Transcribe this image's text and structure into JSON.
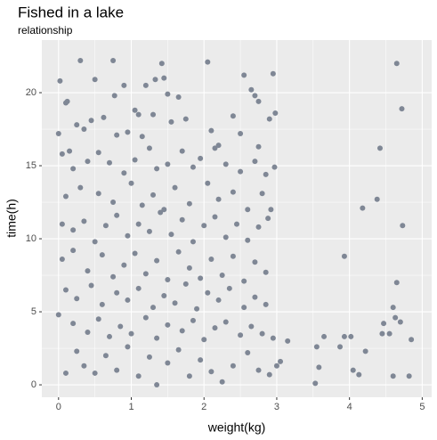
{
  "chart_data": {
    "type": "scatter",
    "title": "Fished in a lake",
    "subtitle": "relationship",
    "x_label": "weight(kg)",
    "y_label": "time(h)",
    "color": "#7f8795",
    "grid": true,
    "xlim": [
      -0.23,
      5.13
    ],
    "ylim": [
      -0.85,
      23.6
    ],
    "xticks": [
      0,
      1,
      2,
      3,
      4,
      5
    ],
    "yticks": [
      0,
      5,
      10,
      15,
      20
    ],
    "x": [
      3.15,
      3.05,
      3.0,
      3.53,
      3.55,
      3.65,
      3.58,
      3.87,
      3.93,
      3.93,
      4.02,
      4.05,
      4.13,
      4.18,
      4.22,
      4.38,
      4.42,
      4.45,
      4.47,
      4.55,
      4.6,
      4.6,
      4.63,
      4.65,
      4.65,
      4.72,
      4.73,
      4.82,
      4.85,
      4.7,
      0.02,
      0.1,
      0.12,
      0.3,
      0.5,
      0.75,
      0.77,
      0.9,
      1.05,
      1.1,
      1.2,
      1.33,
      1.42,
      1.45,
      1.5,
      1.65,
      2.05,
      2.55,
      2.65,
      2.75,
      2.95,
      2.7,
      2.9,
      2.98,
      0.25,
      0.35,
      0.45,
      0.62,
      0.8,
      0.95,
      1.15,
      1.3,
      1.55,
      1.75,
      2.1,
      2.2,
      2.4,
      2.5,
      2.75,
      0.0,
      0.05,
      0.15,
      0.2,
      0.4,
      0.55,
      0.7,
      0.9,
      1.05,
      1.25,
      1.35,
      1.5,
      1.7,
      1.85,
      1.95,
      2.15,
      2.3,
      2.5,
      2.7,
      2.85,
      2.97,
      0.1,
      0.3,
      0.55,
      0.75,
      1.0,
      1.15,
      1.3,
      1.45,
      1.6,
      1.8,
      2.05,
      2.2,
      2.4,
      2.6,
      2.8,
      2.92,
      0.05,
      0.2,
      0.35,
      0.5,
      0.65,
      0.8,
      0.95,
      1.1,
      1.25,
      1.4,
      1.55,
      1.7,
      1.85,
      2.0,
      2.15,
      2.3,
      2.45,
      2.6,
      2.75,
      2.88,
      0.05,
      0.2,
      0.4,
      0.6,
      0.75,
      0.9,
      1.05,
      1.2,
      1.35,
      1.5,
      1.65,
      1.8,
      1.95,
      2.1,
      2.25,
      2.4,
      2.55,
      2.7,
      2.85,
      0.1,
      0.25,
      0.45,
      0.6,
      0.8,
      0.95,
      1.1,
      1.3,
      1.45,
      1.6,
      1.75,
      1.9,
      2.05,
      2.2,
      2.35,
      2.55,
      2.7,
      2.85,
      0.0,
      0.2,
      0.4,
      0.55,
      0.7,
      0.85,
      1.0,
      1.2,
      1.35,
      1.5,
      1.7,
      1.85,
      2.0,
      2.15,
      2.3,
      2.5,
      2.65,
      2.8,
      2.95,
      0.1,
      0.25,
      0.35,
      0.5,
      0.65,
      0.8,
      0.95,
      1.1,
      1.25,
      1.35,
      1.5,
      1.65,
      1.8,
      1.95,
      2.1,
      2.25,
      2.4,
      2.6,
      2.75,
      2.9
    ],
    "y": [
      3.0,
      1.6,
      1.3,
      0.1,
      2.6,
      3.3,
      1.2,
      2.6,
      3.3,
      8.8,
      3.3,
      1.0,
      0.7,
      12.1,
      2.3,
      12.7,
      16.2,
      3.5,
      4.2,
      3.5,
      0.6,
      5.3,
      4.6,
      7.0,
      22.0,
      18.9,
      10.9,
      0.6,
      3.1,
      4.3,
      20.8,
      19.3,
      19.4,
      22.2,
      20.9,
      22.2,
      19.8,
      20.5,
      18.8,
      18.5,
      20.5,
      20.9,
      22.0,
      21.0,
      19.9,
      19.7,
      22.1,
      21.2,
      20.2,
      19.4,
      21.3,
      19.8,
      18.2,
      18.6,
      17.8,
      17.5,
      18.1,
      18.3,
      17.1,
      17.3,
      17.0,
      18.5,
      18.0,
      18.2,
      17.4,
      16.4,
      18.4,
      17.2,
      16.3,
      17.2,
      15.8,
      16.0,
      14.8,
      15.3,
      15.9,
      15.2,
      14.5,
      15.4,
      16.2,
      14.8,
      15.1,
      16.0,
      14.9,
      15.5,
      16.2,
      15.1,
      14.6,
      15.3,
      14.4,
      14.9,
      12.9,
      13.5,
      13.1,
      12.5,
      13.8,
      12.3,
      13.0,
      12.0,
      13.5,
      12.4,
      13.8,
      12.7,
      13.2,
      12.0,
      13.1,
      12.0,
      11.0,
      10.6,
      11.2,
      9.8,
      10.9,
      11.6,
      10.2,
      11.0,
      10.5,
      11.8,
      10.3,
      11.3,
      9.8,
      10.9,
      11.5,
      10.1,
      11.0,
      9.9,
      10.8,
      11.4,
      8.6,
      9.2,
      7.8,
      8.9,
      7.4,
      8.2,
      9.0,
      7.6,
      8.5,
      7.2,
      9.1,
      8.0,
      7.3,
      8.6,
      7.5,
      8.8,
      7.1,
      8.4,
      7.7,
      6.5,
      5.9,
      6.8,
      5.5,
      6.3,
      5.8,
      6.6,
      5.3,
      6.1,
      5.6,
      6.9,
      5.2,
      6.3,
      5.8,
      6.6,
      5.3,
      6.0,
      5.5,
      4.8,
      4.2,
      3.6,
      4.5,
      3.3,
      4.0,
      3.5,
      4.6,
      3.2,
      4.1,
      3.7,
      4.4,
      3.1,
      3.9,
      4.3,
      3.4,
      4.0,
      3.5,
      3.2,
      0.8,
      2.3,
      1.3,
      0.8,
      2.0,
      1.0,
      2.6,
      0.6,
      1.9,
      0.0,
      1.5,
      2.4,
      0.6,
      1.7,
      0.9,
      0.2,
      1.3,
      2.2,
      1.0,
      0.7
    ]
  }
}
